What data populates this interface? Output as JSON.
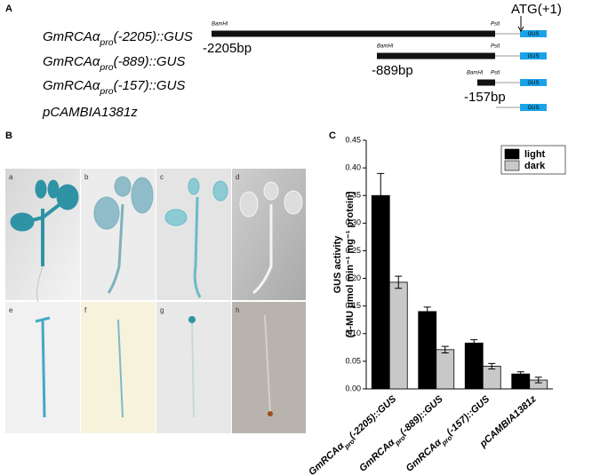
{
  "panel_a": {
    "letter": "A",
    "atg_label": "ATG(+1)",
    "gus_label": "GUS",
    "constructs": [
      {
        "label": "GmRCAαpro(-2205)::GUS",
        "length": "-2205bp",
        "sites": [
          "BamHI",
          "PstI"
        ]
      },
      {
        "label": "GmRCAαpro(-889)::GUS",
        "length": "-889bp",
        "sites": [
          "BamHI",
          "PstI"
        ]
      },
      {
        "label": "GmRCAαpro(-157)::GUS",
        "length": "-157bp",
        "sites": [
          "BamHI",
          "PstI"
        ]
      },
      {
        "label": "pCAMBIA1381z"
      }
    ]
  },
  "panel_b": {
    "letter": "B",
    "photo_labels": [
      "a",
      "b",
      "c",
      "d",
      "e",
      "f",
      "g",
      "h"
    ]
  },
  "chart_data": {
    "type": "bar",
    "letter": "C",
    "y_label": [
      "GUS activity",
      "(4-MU μmol min⁻¹ mg⁻¹ protein)"
    ],
    "categories": [
      "GmRCAαpro(-2205)::GUS",
      "GmRCAαpro(-889)::GUS",
      "GmRCAαpro(-157)::GUS",
      "pCAMBIA1381z"
    ],
    "series": [
      {
        "name": "light",
        "color": "#000000",
        "values": [
          0.35,
          0.14,
          0.083,
          0.027
        ],
        "errors": [
          0.04,
          0.008,
          0.006,
          0.004
        ]
      },
      {
        "name": "dark",
        "color": "#c8c8c8",
        "values": [
          0.193,
          0.071,
          0.041,
          0.016
        ],
        "errors": [
          0.011,
          0.006,
          0.005,
          0.005
        ]
      }
    ],
    "ylim": [
      0,
      0.45
    ],
    "yticks": [
      {
        "value": 0,
        "label": "0.00"
      },
      {
        "value": 0.05,
        "label": "0.05"
      },
      {
        "value": 0.1,
        "label": "0.10"
      },
      {
        "value": 0.15,
        "label": "0.15"
      },
      {
        "value": 0.2,
        "label": "0.20"
      },
      {
        "value": 0.25,
        "label": "0.25"
      },
      {
        "value": 0.3,
        "label": "0.30"
      },
      {
        "value": 0.35,
        "label": "0.35"
      },
      {
        "value": 0.4,
        "label": "0.40"
      },
      {
        "value": 0.45,
        "label": "0.45"
      }
    ],
    "legend": "upper right"
  }
}
